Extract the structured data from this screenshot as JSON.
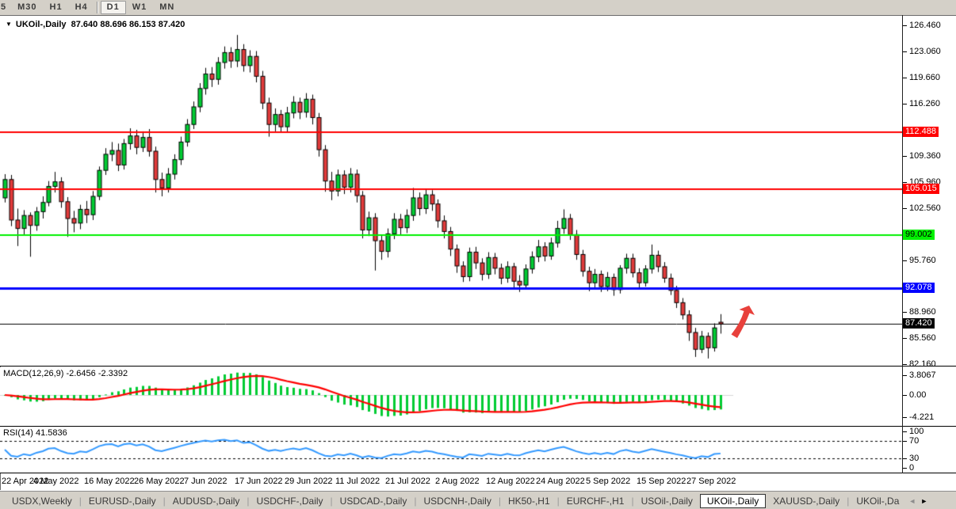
{
  "toolbar": {
    "timeframes": [
      {
        "label": "5",
        "cut": true,
        "active": false
      },
      {
        "label": "M30",
        "active": false
      },
      {
        "label": "H1",
        "active": false
      },
      {
        "label": "H4",
        "active": false
      },
      {
        "label": "D1",
        "active": true
      },
      {
        "label": "W1",
        "active": false
      },
      {
        "label": "MN",
        "active": false
      }
    ]
  },
  "chart_header": {
    "symbol": "UKOil-,Daily",
    "ohlc": "87.640 88.696 86.153 87.420"
  },
  "chart_data": {
    "type": "candlestick",
    "symbol": "UKOil-",
    "timeframe": "Daily",
    "last_bar_ohlc": {
      "open": "87.640",
      "high": "88.696",
      "low": "86.153",
      "close": "87.420"
    },
    "price_range": [
      82.16,
      126.46
    ],
    "price_ticks": [
      {
        "label": "126.460",
        "value": 126.46
      },
      {
        "label": "123.060",
        "value": 123.06
      },
      {
        "label": "119.660",
        "value": 119.66
      },
      {
        "label": "116.260",
        "value": 116.26
      },
      {
        "label": "109.360",
        "value": 109.36
      },
      {
        "label": "105.960",
        "value": 105.96
      },
      {
        "label": "102.560",
        "value": 102.56
      },
      {
        "label": "95.760",
        "value": 95.76
      },
      {
        "label": "88.960",
        "value": 88.96
      },
      {
        "label": "85.560",
        "value": 85.56
      },
      {
        "label": "82.160",
        "value": 82.16
      }
    ],
    "levels": [
      {
        "label": "112.488",
        "value": 112.488,
        "color": "#FF0000",
        "text": "#FFFFFF",
        "width": 2
      },
      {
        "label": "105.015",
        "value": 105.015,
        "color": "#FF0000",
        "text": "#FFFFFF",
        "width": 2
      },
      {
        "label": "99.002",
        "value": 99.002,
        "color": "#00F000",
        "text": "#000000",
        "width": 2
      },
      {
        "label": "92.078",
        "value": 92.078,
        "color": "#0000FF",
        "text": "#FFFFFF",
        "width": 3
      },
      {
        "label": "87.420",
        "value": 87.42,
        "color": "#000000",
        "text": "#FFFFFF",
        "width": 1
      }
    ],
    "x_labels": [
      {
        "i": 0,
        "label": "22 Apr 2022"
      },
      {
        "i": 8,
        "label": "4 May 2022"
      },
      {
        "i": 16,
        "label": "16 May 2022"
      },
      {
        "i": 24,
        "label": "26 May 2022"
      },
      {
        "i": 32,
        "label": "7 Jun 2022"
      },
      {
        "i": 40,
        "label": "17 Jun 2022"
      },
      {
        "i": 48,
        "label": "29 Jun 2022"
      },
      {
        "i": 56,
        "label": "11 Jul 2022"
      },
      {
        "i": 64,
        "label": "21 Jul 2022"
      },
      {
        "i": 72,
        "label": "2 Aug 2022"
      },
      {
        "i": 80,
        "label": "12 Aug 2022"
      },
      {
        "i": 88,
        "label": "24 Aug 2022"
      },
      {
        "i": 96,
        "label": "5 Sep 2022"
      },
      {
        "i": 104,
        "label": "15 Sep 2022"
      },
      {
        "i": 112,
        "label": "27 Sep 2022"
      }
    ],
    "ohlc": [
      [
        103.9,
        107.0,
        103.3,
        106.3
      ],
      [
        106.3,
        106.9,
        100.2,
        101.0
      ],
      [
        101.0,
        102.5,
        97.6,
        99.9
      ],
      [
        99.9,
        102.3,
        99.1,
        101.6
      ],
      [
        101.6,
        102.0,
        96.2,
        100.3
      ],
      [
        100.3,
        102.7,
        99.6,
        102.1
      ],
      [
        102.1,
        104.1,
        101.2,
        103.3
      ],
      [
        103.3,
        106.1,
        102.8,
        105.4
      ],
      [
        105.4,
        107.3,
        104.6,
        106.0
      ],
      [
        106.0,
        106.6,
        102.6,
        103.4
      ],
      [
        103.4,
        104.0,
        98.8,
        101.2
      ],
      [
        101.2,
        102.2,
        99.4,
        100.6
      ],
      [
        100.6,
        103.0,
        99.8,
        102.4
      ],
      [
        102.4,
        103.5,
        100.6,
        101.7
      ],
      [
        101.7,
        104.8,
        101.0,
        104.1
      ],
      [
        104.1,
        108.0,
        103.6,
        107.5
      ],
      [
        107.5,
        110.4,
        106.9,
        109.6
      ],
      [
        109.6,
        111.2,
        108.7,
        110.1
      ],
      [
        110.1,
        111.0,
        107.4,
        108.2
      ],
      [
        108.2,
        111.6,
        107.6,
        111.0
      ],
      [
        111.0,
        113.0,
        110.2,
        112.0
      ],
      [
        112.0,
        112.8,
        109.6,
        110.5
      ],
      [
        110.5,
        112.6,
        109.9,
        111.8
      ],
      [
        111.8,
        112.9,
        109.3,
        110.0
      ],
      [
        110.0,
        110.6,
        104.6,
        106.3
      ],
      [
        106.3,
        107.2,
        104.1,
        105.2
      ],
      [
        105.2,
        107.8,
        104.6,
        107.0
      ],
      [
        107.0,
        109.6,
        106.3,
        108.9
      ],
      [
        108.9,
        111.9,
        108.2,
        111.2
      ],
      [
        111.2,
        114.2,
        110.6,
        113.5
      ],
      [
        113.5,
        116.5,
        112.9,
        115.8
      ],
      [
        115.8,
        118.9,
        115.1,
        118.2
      ],
      [
        118.2,
        120.9,
        117.4,
        120.1
      ],
      [
        120.1,
        121.0,
        118.4,
        119.4
      ],
      [
        119.4,
        122.3,
        118.7,
        121.6
      ],
      [
        121.6,
        123.7,
        120.8,
        122.9
      ],
      [
        122.9,
        123.6,
        120.9,
        121.8
      ],
      [
        121.8,
        125.2,
        121.0,
        123.3
      ],
      [
        123.3,
        124.0,
        120.4,
        121.2
      ],
      [
        121.2,
        123.2,
        120.3,
        122.4
      ],
      [
        122.4,
        123.1,
        119.0,
        119.8
      ],
      [
        119.8,
        120.5,
        115.5,
        116.3
      ],
      [
        116.3,
        117.0,
        111.9,
        113.5
      ],
      [
        113.5,
        115.6,
        112.6,
        114.8
      ],
      [
        114.8,
        115.4,
        112.4,
        113.2
      ],
      [
        113.2,
        115.8,
        112.5,
        115.0
      ],
      [
        115.0,
        117.2,
        114.3,
        116.4
      ],
      [
        116.4,
        117.0,
        114.2,
        115.1
      ],
      [
        115.1,
        117.6,
        114.4,
        116.8
      ],
      [
        116.8,
        117.4,
        113.5,
        114.4
      ],
      [
        114.4,
        115.0,
        109.3,
        110.2
      ],
      [
        110.2,
        110.8,
        104.7,
        106.1
      ],
      [
        106.1,
        107.3,
        103.6,
        104.8
      ],
      [
        104.8,
        107.6,
        104.1,
        106.9
      ],
      [
        106.9,
        107.5,
        104.4,
        105.3
      ],
      [
        105.3,
        107.8,
        104.6,
        107.0
      ],
      [
        107.0,
        107.6,
        103.3,
        104.2
      ],
      [
        104.2,
        104.8,
        98.6,
        99.7
      ],
      [
        99.7,
        102.1,
        98.9,
        101.3
      ],
      [
        101.3,
        101.9,
        94.4,
        98.3
      ],
      [
        98.3,
        99.0,
        95.8,
        96.9
      ],
      [
        96.9,
        99.9,
        96.1,
        99.2
      ],
      [
        99.2,
        101.9,
        98.5,
        101.1
      ],
      [
        101.1,
        101.8,
        99.1,
        100.0
      ],
      [
        100.0,
        102.4,
        99.3,
        101.6
      ],
      [
        101.6,
        105.2,
        100.9,
        103.9
      ],
      [
        103.9,
        104.6,
        101.6,
        102.5
      ],
      [
        102.5,
        105.0,
        101.8,
        104.3
      ],
      [
        104.3,
        104.9,
        102.2,
        103.1
      ],
      [
        103.1,
        103.7,
        100.0,
        100.9
      ],
      [
        100.9,
        101.6,
        98.6,
        99.5
      ],
      [
        99.5,
        100.1,
        96.3,
        97.2
      ],
      [
        97.2,
        97.8,
        94.1,
        95.0
      ],
      [
        95.0,
        95.6,
        92.9,
        93.6
      ],
      [
        93.6,
        97.4,
        93.0,
        96.8
      ],
      [
        96.8,
        97.5,
        94.6,
        95.4
      ],
      [
        95.4,
        96.0,
        93.1,
        93.9
      ],
      [
        93.9,
        96.8,
        93.3,
        96.1
      ],
      [
        96.1,
        96.7,
        93.9,
        94.7
      ],
      [
        94.7,
        95.3,
        92.6,
        93.4
      ],
      [
        93.4,
        95.6,
        92.8,
        94.9
      ],
      [
        94.9,
        95.4,
        92.0,
        93.0
      ],
      [
        93.0,
        93.8,
        91.6,
        92.5
      ],
      [
        92.5,
        95.2,
        92.0,
        94.6
      ],
      [
        94.6,
        96.9,
        94.0,
        96.2
      ],
      [
        96.2,
        98.4,
        95.5,
        97.5
      ],
      [
        97.5,
        98.1,
        95.6,
        96.3
      ],
      [
        96.3,
        98.7,
        95.8,
        98.0
      ],
      [
        98.0,
        100.9,
        97.4,
        99.9
      ],
      [
        99.9,
        102.4,
        99.2,
        101.2
      ],
      [
        101.2,
        101.8,
        98.4,
        99.1
      ],
      [
        99.1,
        99.7,
        95.8,
        96.5
      ],
      [
        96.5,
        97.1,
        93.6,
        94.3
      ],
      [
        94.3,
        94.9,
        91.7,
        92.8
      ],
      [
        92.8,
        94.6,
        92.2,
        93.9
      ],
      [
        93.9,
        94.4,
        91.6,
        92.3
      ],
      [
        92.3,
        94.2,
        91.7,
        93.5
      ],
      [
        93.5,
        94.0,
        91.1,
        91.9
      ],
      [
        91.9,
        95.1,
        91.4,
        94.7
      ],
      [
        94.7,
        96.6,
        94.0,
        96.0
      ],
      [
        96.0,
        96.6,
        93.5,
        94.1
      ],
      [
        94.1,
        94.7,
        92.1,
        92.8
      ],
      [
        92.8,
        95.1,
        92.3,
        94.6
      ],
      [
        94.6,
        97.8,
        94.0,
        96.4
      ],
      [
        96.4,
        97.0,
        94.2,
        94.9
      ],
      [
        94.9,
        95.5,
        92.8,
        93.4
      ],
      [
        93.4,
        94.0,
        91.2,
        91.8
      ],
      [
        91.8,
        92.4,
        89.5,
        90.2
      ],
      [
        90.2,
        90.8,
        88.0,
        88.6
      ],
      [
        88.6,
        89.2,
        85.2,
        86.3
      ],
      [
        86.3,
        86.9,
        83.1,
        84.1
      ],
      [
        84.1,
        86.5,
        83.6,
        85.8
      ],
      [
        85.8,
        86.3,
        82.9,
        84.3
      ],
      [
        84.3,
        87.5,
        83.8,
        86.9
      ],
      [
        87.64,
        88.7,
        86.15,
        87.42
      ]
    ],
    "indicators": [
      {
        "name": "MACD",
        "params": "12,26,9",
        "values_label": "MACD(12,26,9) -2.6456 -2.3392",
        "ticks": [
          {
            "label": "3.8067",
            "value": 3.8067
          },
          {
            "label": "0.00",
            "value": 0
          },
          {
            "label": "-4.221",
            "value": -4.221
          }
        ]
      },
      {
        "name": "RSI",
        "params": "14",
        "values_label": "RSI(14) 41.5836",
        "ticks": [
          {
            "label": "100",
            "value": 100
          },
          {
            "label": "70",
            "value": 70
          },
          {
            "label": "30",
            "value": 30
          },
          {
            "label": "0",
            "value": 0
          }
        ],
        "guides": [
          70,
          30
        ]
      }
    ]
  },
  "annotations": {
    "arrow": {
      "direction": "up-right",
      "color": "#E8413C"
    }
  },
  "tabs": {
    "items": [
      {
        "label": "USDX,Weekly",
        "active": false
      },
      {
        "label": "EURUSD-,Daily",
        "active": false
      },
      {
        "label": "AUDUSD-,Daily",
        "active": false
      },
      {
        "label": "USDCHF-,Daily",
        "active": false
      },
      {
        "label": "USDCAD-,Daily",
        "active": false
      },
      {
        "label": "USDCNH-,Daily",
        "active": false
      },
      {
        "label": "HK50-,H1",
        "active": false
      },
      {
        "label": "EURCHF-,H1",
        "active": false
      },
      {
        "label": "USOil-,Daily",
        "active": false
      },
      {
        "label": "UKOil-,Daily",
        "active": true
      },
      {
        "label": "XAUUSD-,Daily",
        "active": false
      },
      {
        "label": "UKOil-,Da",
        "active": false
      }
    ],
    "scroll_left": "◄",
    "scroll_right": "►"
  },
  "colors": {
    "bull": "#00CC33",
    "bear": "#E23B3B",
    "wick": "#000000",
    "macd_hist": "#00CC33",
    "macd_signal": "#FF0000",
    "rsi_line": "#3399FF",
    "chrome_bg": "#D4D0C8"
  }
}
